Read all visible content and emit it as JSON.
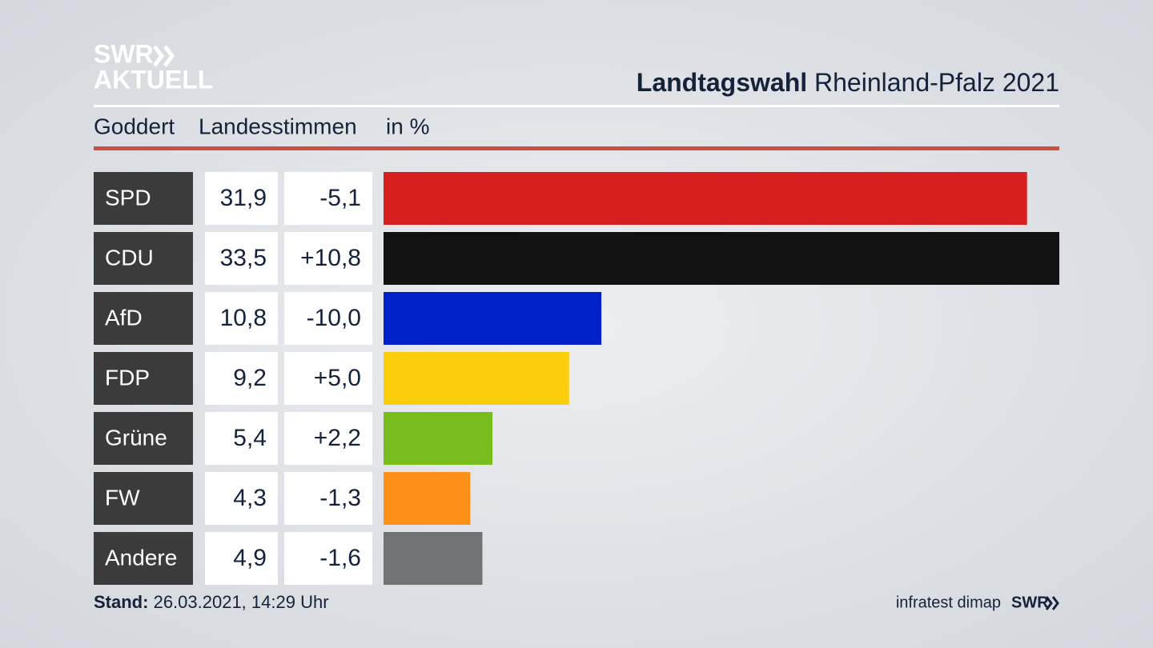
{
  "logo": [
    "SWR",
    "AKTUELL"
  ],
  "chart_data": {
    "type": "bar",
    "title_bold": "Landtagswahl",
    "title": "Rheinland-Pfalz 2021",
    "subtitle": [
      "Goddert",
      "Landesstimmen",
      "in %"
    ],
    "categories": [
      "SPD",
      "CDU",
      "AfD",
      "FDP",
      "Grüne",
      "FW",
      "Andere"
    ],
    "values": [
      31.9,
      33.5,
      10.8,
      9.2,
      5.4,
      4.3,
      4.9
    ],
    "value_labels": [
      "31,9",
      "33,5",
      "10,8",
      "9,2",
      "5,4",
      "4,3",
      "4,9"
    ],
    "changes": [
      "-5,1",
      "+10,8",
      "-10,0",
      "+5,0",
      "+2,2",
      "-1,3",
      "-1,6"
    ],
    "colors": [
      "#d61f1f",
      "#121212",
      "#0021c8",
      "#fccd0a",
      "#78bc1e",
      "#fb8f17",
      "#717274"
    ],
    "xlim": [
      0,
      33.5
    ]
  },
  "footer": {
    "label": "Stand:",
    "date": "26.03.2021, 14:29 Uhr",
    "source": "infratest dimap",
    "brand": "SWR"
  }
}
